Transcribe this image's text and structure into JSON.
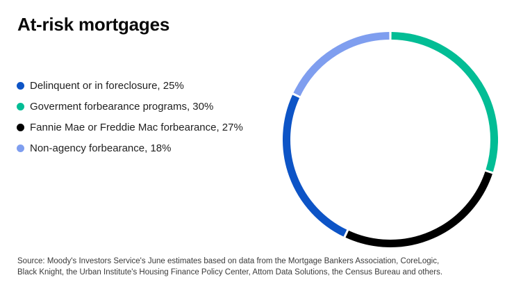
{
  "chart_data": {
    "type": "pie",
    "style": "donut",
    "title": "At-risk mortgages",
    "unit": "%",
    "labels": [
      "Delinquent or in foreclosure",
      "Goverment forbearance programs",
      "Fannie Mae or Freddie Mac forbearance",
      "Non-agency forbearance"
    ],
    "values": [
      25,
      30,
      27,
      18
    ],
    "colors": [
      "#0D54C6",
      "#02BD95",
      "#000000",
      "#7F9EEF"
    ],
    "clockwise_order_from_top": [
      1,
      2,
      0,
      3
    ],
    "legend_position": "left",
    "segment_gap_deg": 1.2,
    "background": "#ffffff"
  },
  "legend": {
    "items": [
      {
        "text": "Delinquent or in foreclosure, 25%",
        "color": "#0D54C6"
      },
      {
        "text": "Goverment forbearance programs, 30%",
        "color": "#02BD95"
      },
      {
        "text": "Fannie Mae or Freddie Mac forbearance, 27%",
        "color": "#000000"
      },
      {
        "text": "Non-agency forbearance, 18%",
        "color": "#7F9EEF"
      }
    ]
  },
  "source": {
    "line1": "Source: Moody's Investors Service's June estimates based on data from the Mortgage Bankers Association, CoreLogic,",
    "line2": "Black Knight, the Urban Institute's Housing Finance Policy Center, Attom Data Solutions, the Census Bureau and others."
  }
}
